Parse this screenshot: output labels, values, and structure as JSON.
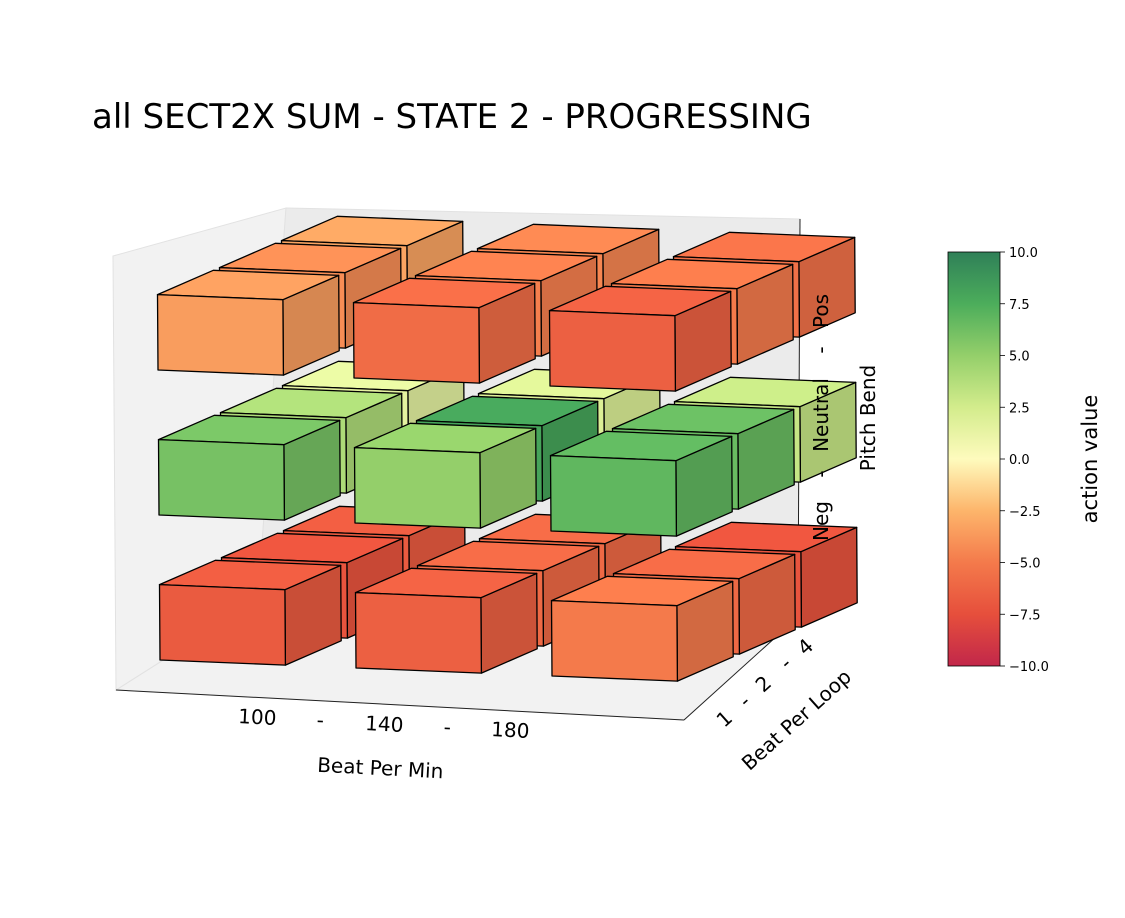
{
  "chart_data": {
    "type": "bar3d",
    "title": "all SECT2X SUM - STATE 2 - PROGRESSING",
    "xlabel": "Beat Per Min",
    "ylabel": "Beat Per Loop",
    "zlabel": "Pitch Bend",
    "x_ticks": [
      "100",
      "-",
      "140",
      "-",
      "180"
    ],
    "y_ticks": [
      "1",
      "-",
      "2",
      "-",
      "4"
    ],
    "z_ticks": [
      "Neg",
      "-",
      "Neutral",
      "-",
      "Pos"
    ],
    "x_categories": [
      "100",
      "140",
      "180"
    ],
    "y_categories": [
      "1",
      "2",
      "4"
    ],
    "z_categories": [
      "Neg",
      "Neutral",
      "Pos"
    ],
    "colorbar": {
      "label": "action value",
      "min": -10,
      "max": 10,
      "ticks": [
        "10.0",
        "7.5",
        "5.0",
        "2.5",
        "0.0",
        "−2.5",
        "−5.0",
        "−7.5",
        "−10.0"
      ],
      "colormap": "RdYlGn"
    },
    "cells": [
      {
        "bpm": "100",
        "loop": "1",
        "pitch": "Neg",
        "value": -6.8
      },
      {
        "bpm": "100",
        "loop": "2",
        "pitch": "Neg",
        "value": -7.2
      },
      {
        "bpm": "100",
        "loop": "4",
        "pitch": "Neg",
        "value": -6.8
      },
      {
        "bpm": "140",
        "loop": "1",
        "pitch": "Neg",
        "value": -6.5
      },
      {
        "bpm": "140",
        "loop": "2",
        "pitch": "Neg",
        "value": -6.0
      },
      {
        "bpm": "140",
        "loop": "4",
        "pitch": "Neg",
        "value": -6.0
      },
      {
        "bpm": "180",
        "loop": "1",
        "pitch": "Neg",
        "value": -5.0
      },
      {
        "bpm": "180",
        "loop": "2",
        "pitch": "Neg",
        "value": -6.0
      },
      {
        "bpm": "180",
        "loop": "4",
        "pitch": "Neg",
        "value": -7.2
      },
      {
        "bpm": "100",
        "loop": "1",
        "pitch": "Neutral",
        "value": 6.0
      },
      {
        "bpm": "100",
        "loop": "2",
        "pitch": "Neutral",
        "value": 4.0
      },
      {
        "bpm": "100",
        "loop": "4",
        "pitch": "Neutral",
        "value": 1.5
      },
      {
        "bpm": "140",
        "loop": "1",
        "pitch": "Neutral",
        "value": 5.0
      },
      {
        "bpm": "140",
        "loop": "2",
        "pitch": "Neutral",
        "value": 8.0
      },
      {
        "bpm": "140",
        "loop": "4",
        "pitch": "Neutral",
        "value": 2.0
      },
      {
        "bpm": "180",
        "loop": "1",
        "pitch": "Neutral",
        "value": 6.8
      },
      {
        "bpm": "180",
        "loop": "2",
        "pitch": "Neutral",
        "value": 6.5
      },
      {
        "bpm": "180",
        "loop": "4",
        "pitch": "Neutral",
        "value": 3.0
      },
      {
        "bpm": "100",
        "loop": "1",
        "pitch": "Pos",
        "value": -3.5
      },
      {
        "bpm": "100",
        "loop": "2",
        "pitch": "Pos",
        "value": -4.2
      },
      {
        "bpm": "100",
        "loop": "4",
        "pitch": "Pos",
        "value": -3.2
      },
      {
        "bpm": "140",
        "loop": "1",
        "pitch": "Pos",
        "value": -5.8
      },
      {
        "bpm": "140",
        "loop": "2",
        "pitch": "Pos",
        "value": -4.8
      },
      {
        "bpm": "140",
        "loop": "4",
        "pitch": "Pos",
        "value": -4.5
      },
      {
        "bpm": "180",
        "loop": "1",
        "pitch": "Pos",
        "value": -6.5
      },
      {
        "bpm": "180",
        "loop": "2",
        "pitch": "Pos",
        "value": -5.0
      },
      {
        "bpm": "180",
        "loop": "4",
        "pitch": "Pos",
        "value": -5.5
      }
    ]
  }
}
